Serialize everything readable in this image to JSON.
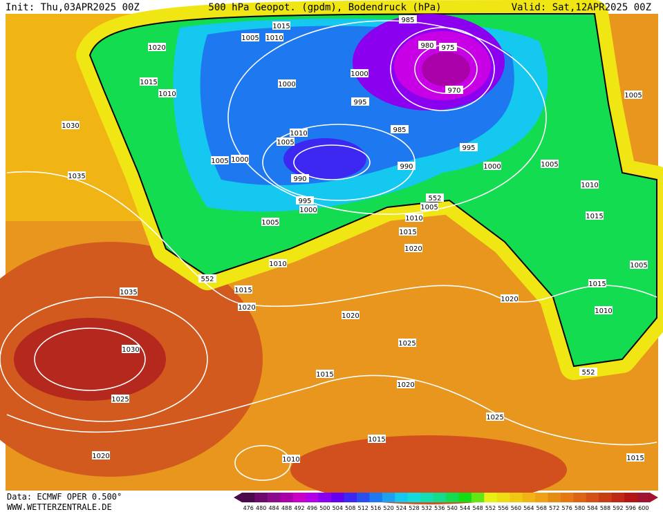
{
  "header": {
    "init": "Init: Thu,03APR2025 00Z",
    "title": "500 hPa Geopot. (gpdm), Bodendruck (hPa)",
    "valid": "Valid: Sat,12APR2025 00Z"
  },
  "footer": {
    "source": "Data: ECMWF OPER 0.500°",
    "site": "WWW.WETTERZENTRALE.DE"
  },
  "colorbar": {
    "labels": [
      476,
      480,
      484,
      488,
      492,
      496,
      500,
      504,
      508,
      512,
      516,
      520,
      524,
      528,
      532,
      536,
      540,
      544,
      548,
      552,
      556,
      560,
      564,
      568,
      572,
      576,
      580,
      584,
      588,
      592,
      596,
      600
    ],
    "colors": [
      "#4b0a4b",
      "#6e0a6e",
      "#8c0a8c",
      "#aa00aa",
      "#c800c8",
      "#b400e6",
      "#8c00f0",
      "#6400f0",
      "#3c28f0",
      "#2850f0",
      "#1e78f0",
      "#1ea0f0",
      "#14c8f0",
      "#14dcdc",
      "#14dcb4",
      "#14dc8c",
      "#14dc50",
      "#14dc14",
      "#64e614",
      "#e6f014",
      "#f0dc14",
      "#f0c814",
      "#f0b414",
      "#f0a014",
      "#e68c14",
      "#e67814",
      "#dc6414",
      "#d25014",
      "#c83c14",
      "#be2814",
      "#b41414",
      "#a01432"
    ]
  },
  "isobar_labels": [
    985,
    1015,
    1005,
    1010,
    980,
    975,
    1020,
    1015,
    1010,
    1000,
    1000,
    970,
    1005,
    995,
    1030,
    985,
    1010,
    1005,
    995,
    1005,
    1000,
    990,
    1000,
    1005,
    1035,
    990,
    1010,
    552,
    995,
    1005,
    1000,
    1010,
    1015,
    1005,
    1015,
    1020,
    1010,
    1005,
    552,
    1015,
    1035,
    1015,
    1020,
    1020,
    1010,
    1020,
    1025,
    1030,
    1015,
    552,
    1020,
    1025,
    1025,
    1015,
    1020,
    1010,
    1015
  ]
}
